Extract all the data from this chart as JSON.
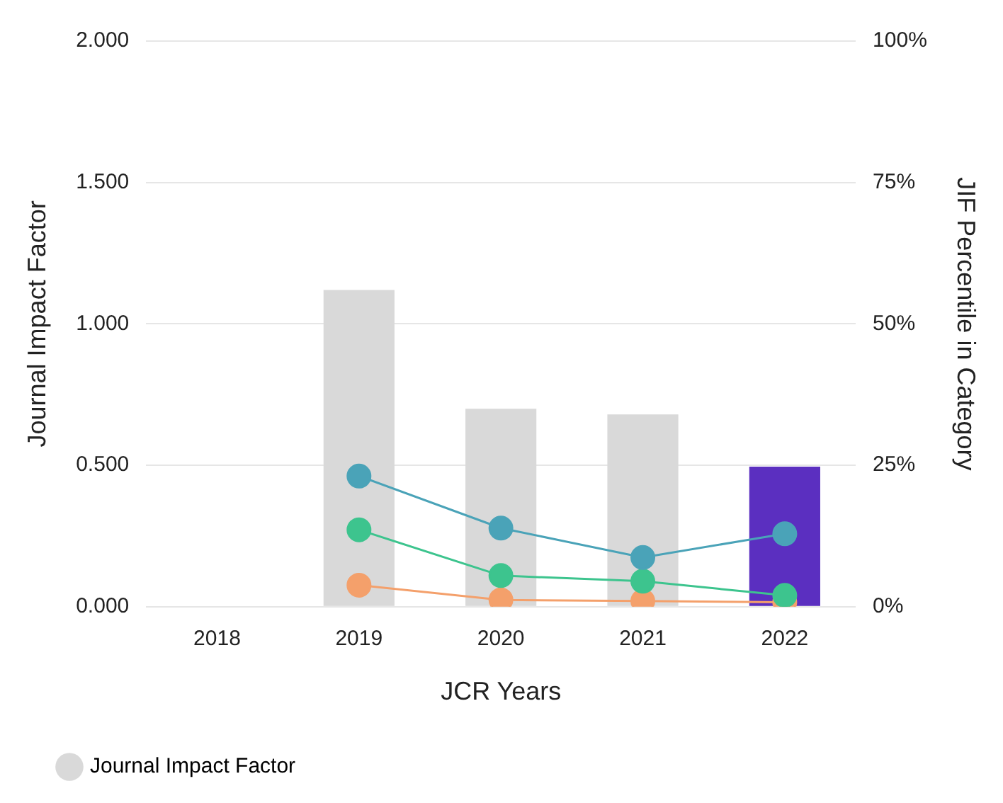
{
  "chart_data": {
    "type": "bar",
    "categories": [
      "2018",
      "2019",
      "2020",
      "2021",
      "2022"
    ],
    "xlabel": "JCR Years",
    "ylabel": "Journal Impact Factor",
    "y2label": "JIF Percentile in Category",
    "series": [
      {
        "name": "Journal Impact Factor",
        "color": "#d9d9d9",
        "colors": [
          "#d9d9d9",
          "#d9d9d9",
          "#d9d9d9",
          "#d9d9d9",
          "#5b2fc0"
        ],
        "values": [
          null,
          1.12,
          0.7,
          0.68,
          0.495
        ]
      },
      {
        "type": "line",
        "axis": "y2",
        "color": "#4aa3b8",
        "values": [
          null,
          23.1,
          13.9,
          8.7,
          12.9
        ]
      },
      {
        "type": "line",
        "axis": "y2",
        "color": "#3dc48e",
        "values": [
          null,
          13.6,
          5.5,
          4.5,
          2.0
        ]
      },
      {
        "type": "line",
        "axis": "y2",
        "color": "#f4a06b",
        "values": [
          null,
          3.8,
          1.2,
          1.0,
          0.8
        ]
      }
    ],
    "ylim": [
      0,
      2
    ],
    "yticks": [
      {
        "value": 0,
        "label": "0.000"
      },
      {
        "value": 0.5,
        "label": "0.500"
      },
      {
        "value": 1,
        "label": "1.000"
      },
      {
        "value": 1.5,
        "label": "1.500"
      },
      {
        "value": 2,
        "label": "2.000"
      }
    ],
    "y2lim": [
      0,
      100
    ],
    "y2ticks": [
      {
        "value": 0,
        "label": "0%"
      },
      {
        "value": 25,
        "label": "25%"
      },
      {
        "value": 50,
        "label": "50%"
      },
      {
        "value": 75,
        "label": "75%"
      },
      {
        "value": 100,
        "label": "100%"
      }
    ],
    "grid": "y",
    "legend": "bottom",
    "marker": "circle"
  }
}
